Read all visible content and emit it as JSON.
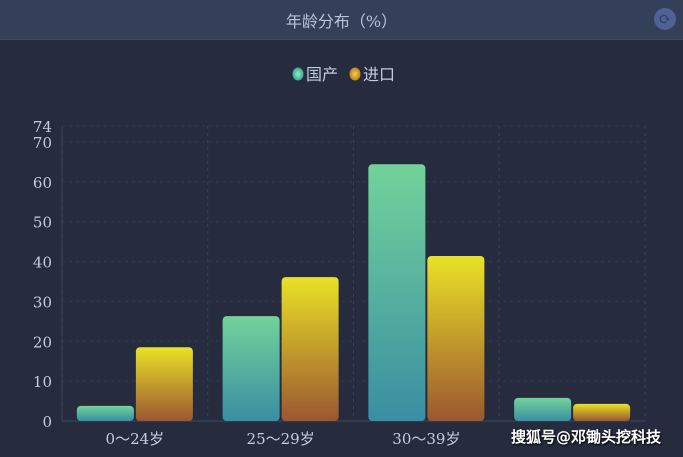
{
  "header": {
    "title": "年龄分布（%）",
    "refresh_icon": "refresh-icon"
  },
  "watermark": "搜狐号@邓锄头挖科技",
  "colors": {
    "domestic_top": "#72d39a",
    "domestic_bottom": "#3a8ea3",
    "imported_top": "#e9e226",
    "imported_bottom": "#9b5730",
    "background": "#262c3e",
    "header": "#343f5a"
  },
  "chart_data": {
    "type": "bar",
    "title": "年龄分布（%）",
    "categories": [
      "0～24岁",
      "25～29岁",
      "30～39岁",
      ""
    ],
    "series": [
      {
        "name": "国产",
        "values": [
          3.8,
          26.3,
          64.4,
          5.8
        ]
      },
      {
        "name": "进口",
        "values": [
          18.5,
          36.1,
          41.4,
          4.3
        ]
      }
    ],
    "ylim": [
      0,
      74
    ],
    "yticks": [
      0,
      10,
      20,
      30,
      40,
      50,
      60,
      70,
      74
    ],
    "legend": "top-center",
    "grid": true,
    "xlabel": "",
    "ylabel": ""
  }
}
